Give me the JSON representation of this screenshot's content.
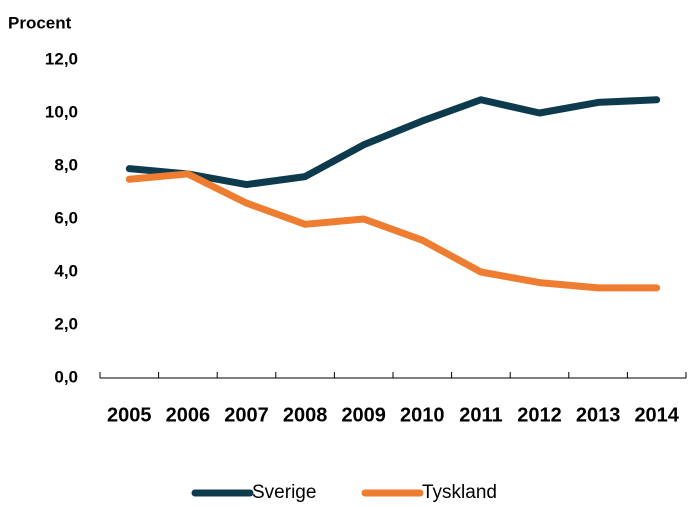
{
  "chart_data": {
    "type": "line",
    "y_label": "Procent",
    "categories": [
      "2005",
      "2006",
      "2007",
      "2008",
      "2009",
      "2010",
      "2011",
      "2012",
      "2013",
      "2014"
    ],
    "series": [
      {
        "name": "Sverige",
        "color": "#0e3a4e",
        "values": [
          7.9,
          7.7,
          7.3,
          7.6,
          8.8,
          9.7,
          10.5,
          10.0,
          10.4,
          10.5
        ]
      },
      {
        "name": "Tyskland",
        "color": "#ee7d31",
        "values": [
          7.5,
          7.7,
          6.6,
          5.8,
          6.0,
          5.2,
          4.0,
          3.6,
          3.4,
          3.4
        ]
      }
    ],
    "ylim": [
      0,
      12
    ],
    "yticks": [
      {
        "value": 0,
        "label": "0,0"
      },
      {
        "value": 2,
        "label": "2,0"
      },
      {
        "value": 4,
        "label": "4,0"
      },
      {
        "value": 6,
        "label": "6,0"
      },
      {
        "value": 8,
        "label": "8,0"
      },
      {
        "value": 10,
        "label": "10,0"
      },
      {
        "value": 12,
        "label": "12,0"
      }
    ],
    "grid": false,
    "legend": "bottom"
  }
}
